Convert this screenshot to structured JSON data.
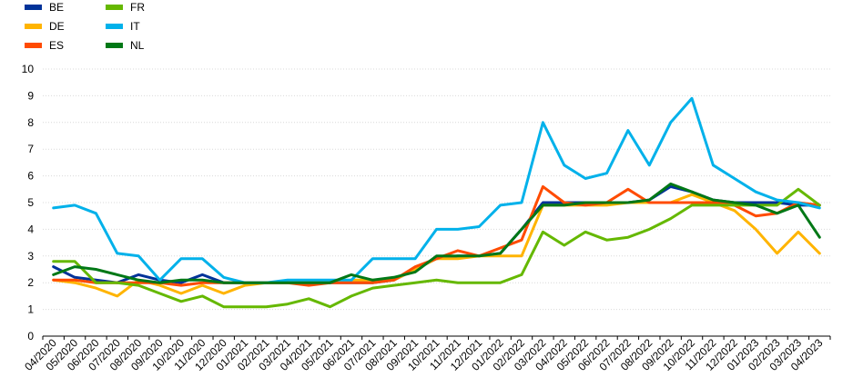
{
  "chart_data": {
    "type": "line",
    "title": "",
    "xlabel": "",
    "ylabel": "",
    "ylim": [
      0,
      10
    ],
    "yticks": [
      0,
      1,
      2,
      3,
      4,
      5,
      6,
      7,
      8,
      9,
      10
    ],
    "grid": "horizontal",
    "legend_position": "top-left",
    "x": [
      "04/2020",
      "05/2020",
      "06/2020",
      "07/2020",
      "08/2020",
      "09/2020",
      "10/2020",
      "11/2020",
      "12/2020",
      "01/2021",
      "02/2021",
      "03/2021",
      "04/2021",
      "05/2021",
      "06/2021",
      "07/2021",
      "08/2021",
      "09/2021",
      "10/2021",
      "11/2021",
      "12/2021",
      "01/2022",
      "02/2022",
      "03/2022",
      "04/2022",
      "05/2022",
      "06/2022",
      "07/2022",
      "08/2022",
      "09/2022",
      "10/2022",
      "11/2022",
      "12/2022",
      "01/2023",
      "02/2023",
      "03/2023",
      "04/2023"
    ],
    "series": [
      {
        "name": "BE",
        "color": "#003299",
        "values": [
          2.6,
          2.2,
          2.1,
          2.0,
          2.3,
          2.1,
          2.0,
          2.3,
          2.0,
          2.0,
          2.0,
          2.0,
          2.0,
          2.0,
          2.0,
          2.0,
          2.1,
          2.5,
          2.9,
          3.0,
          3.0,
          3.1,
          4.0,
          5.0,
          5.0,
          5.0,
          5.0,
          5.0,
          5.1,
          5.6,
          5.4,
          5.1,
          5.0,
          5.0,
          5.0,
          4.9,
          4.9
        ]
      },
      {
        "name": "DE",
        "color": "#ffb400",
        "values": [
          2.1,
          2.0,
          1.8,
          1.5,
          2.1,
          1.9,
          1.6,
          1.9,
          1.6,
          1.9,
          2.0,
          2.0,
          2.0,
          2.0,
          2.1,
          2.1,
          2.1,
          2.5,
          2.9,
          2.9,
          3.0,
          3.0,
          3.0,
          4.9,
          4.9,
          4.9,
          4.9,
          5.0,
          5.0,
          5.0,
          5.3,
          5.0,
          4.7,
          4.0,
          3.1,
          3.9,
          3.1
        ]
      },
      {
        "name": "ES",
        "color": "#ff4b00",
        "values": [
          2.1,
          2.1,
          2.0,
          2.0,
          2.0,
          2.0,
          1.9,
          2.0,
          2.0,
          2.0,
          2.0,
          2.0,
          1.9,
          2.0,
          2.0,
          2.0,
          2.1,
          2.6,
          2.9,
          3.2,
          3.0,
          3.3,
          3.6,
          5.6,
          5.0,
          4.9,
          5.0,
          5.5,
          5.0,
          5.0,
          5.0,
          5.0,
          4.9,
          4.5,
          4.6,
          5.0,
          4.9
        ]
      },
      {
        "name": "FR",
        "color": "#65b800",
        "values": [
          2.8,
          2.8,
          2.0,
          2.0,
          1.9,
          1.6,
          1.3,
          1.5,
          1.1,
          1.1,
          1.1,
          1.2,
          1.4,
          1.1,
          1.5,
          1.8,
          1.9,
          2.0,
          2.1,
          2.0,
          2.0,
          2.0,
          2.3,
          3.9,
          3.4,
          3.9,
          3.6,
          3.7,
          4.0,
          4.4,
          4.9,
          4.9,
          4.9,
          4.9,
          4.9,
          5.5,
          4.9
        ]
      },
      {
        "name": "IT",
        "color": "#00b1ea",
        "values": [
          4.8,
          4.9,
          4.6,
          3.1,
          3.0,
          2.1,
          2.9,
          2.9,
          2.2,
          2.0,
          2.0,
          2.1,
          2.1,
          2.1,
          2.1,
          2.9,
          2.9,
          2.9,
          4.0,
          4.0,
          4.1,
          4.9,
          5.0,
          8.0,
          6.4,
          5.9,
          6.1,
          7.7,
          6.4,
          8.0,
          8.9,
          6.4,
          5.9,
          5.4,
          5.1,
          5.0,
          4.8
        ]
      },
      {
        "name": "NL",
        "color": "#007816",
        "values": [
          2.3,
          2.6,
          2.5,
          2.3,
          2.1,
          2.0,
          2.1,
          2.1,
          2.0,
          2.0,
          2.0,
          2.0,
          2.0,
          2.0,
          2.3,
          2.1,
          2.2,
          2.4,
          3.0,
          3.0,
          3.0,
          3.1,
          4.0,
          4.9,
          4.9,
          5.0,
          5.0,
          5.0,
          5.1,
          5.7,
          5.4,
          5.1,
          5.0,
          4.9,
          4.6,
          4.9,
          3.7
        ]
      }
    ]
  }
}
